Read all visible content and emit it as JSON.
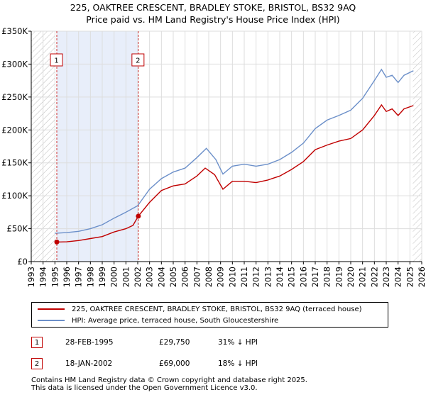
{
  "title": "225, OAKTREE CRESCENT, BRADLEY STOKE, BRISTOL, BS32 9AQ",
  "subtitle": "Price paid vs. HM Land Registry's House Price Index (HPI)",
  "colors": {
    "red": "#c00000",
    "blue": "#6b8fc9",
    "shade": "#e8eefa",
    "grid": "#dddddd"
  },
  "chart_data": {
    "type": "line",
    "title": "225, OAKTREE CRESCENT, BRADLEY STOKE, BRISTOL, BS32 9AQ",
    "xlim": [
      1993,
      2026
    ],
    "ylim": [
      0,
      350000
    ],
    "x_ticks": [
      "1993",
      "1994",
      "1995",
      "1996",
      "1997",
      "1998",
      "1999",
      "2000",
      "2001",
      "2002",
      "2003",
      "2004",
      "2005",
      "2006",
      "2007",
      "2008",
      "2009",
      "2010",
      "2011",
      "2012",
      "2013",
      "2014",
      "2015",
      "2016",
      "2017",
      "2018",
      "2019",
      "2020",
      "2021",
      "2022",
      "2023",
      "2024",
      "2025",
      "2026"
    ],
    "y_ticks": [
      {
        "value": 0,
        "label": "£0"
      },
      {
        "value": 50000,
        "label": "£50K"
      },
      {
        "value": 100000,
        "label": "£100K"
      },
      {
        "value": 150000,
        "label": "£150K"
      },
      {
        "value": 200000,
        "label": "£200K"
      },
      {
        "value": 250000,
        "label": "£250K"
      },
      {
        "value": 300000,
        "label": "£300K"
      },
      {
        "value": 350000,
        "label": "£350K"
      }
    ],
    "shaded_range": [
      1995.16,
      2002.05
    ],
    "hatched_before": 1995.0,
    "hatched_after": 2025.25,
    "series": [
      {
        "name": "225, OAKTREE CRESCENT, BRADLEY STOKE, BRISTOL, BS32 9AQ (terraced house)",
        "color": "#c00000",
        "points": [
          [
            1995.16,
            29750
          ],
          [
            1996,
            30000
          ],
          [
            1997,
            32000
          ],
          [
            1998,
            35000
          ],
          [
            1999,
            38000
          ],
          [
            2000,
            45000
          ],
          [
            2001,
            50000
          ],
          [
            2001.6,
            55000
          ],
          [
            2002.05,
            69000
          ],
          [
            2003,
            90000
          ],
          [
            2004,
            108000
          ],
          [
            2005,
            115000
          ],
          [
            2006,
            118000
          ],
          [
            2007,
            130000
          ],
          [
            2007.7,
            142000
          ],
          [
            2008.5,
            132000
          ],
          [
            2009.2,
            110000
          ],
          [
            2010,
            122000
          ],
          [
            2011,
            122000
          ],
          [
            2012,
            120000
          ],
          [
            2013,
            124000
          ],
          [
            2014,
            130000
          ],
          [
            2015,
            140000
          ],
          [
            2016,
            152000
          ],
          [
            2017,
            170000
          ],
          [
            2018,
            177000
          ],
          [
            2019,
            183000
          ],
          [
            2020,
            187000
          ],
          [
            2021,
            200000
          ],
          [
            2022,
            222000
          ],
          [
            2022.6,
            238000
          ],
          [
            2023,
            228000
          ],
          [
            2023.5,
            232000
          ],
          [
            2024,
            222000
          ],
          [
            2024.5,
            232000
          ],
          [
            2025.3,
            237000
          ]
        ]
      },
      {
        "name": "HPI: Average price, terraced house, South Gloucestershire",
        "color": "#6b8fc9",
        "points": [
          [
            1995,
            43000
          ],
          [
            1996,
            44000
          ],
          [
            1997,
            46000
          ],
          [
            1998,
            50000
          ],
          [
            1999,
            56000
          ],
          [
            2000,
            66000
          ],
          [
            2001,
            75000
          ],
          [
            2002,
            85000
          ],
          [
            2003,
            110000
          ],
          [
            2004,
            126000
          ],
          [
            2005,
            136000
          ],
          [
            2006,
            142000
          ],
          [
            2007,
            158000
          ],
          [
            2007.8,
            172000
          ],
          [
            2008.6,
            155000
          ],
          [
            2009.2,
            133000
          ],
          [
            2010,
            145000
          ],
          [
            2011,
            148000
          ],
          [
            2012,
            145000
          ],
          [
            2013,
            148000
          ],
          [
            2014,
            155000
          ],
          [
            2015,
            166000
          ],
          [
            2016,
            180000
          ],
          [
            2017,
            202000
          ],
          [
            2018,
            215000
          ],
          [
            2019,
            222000
          ],
          [
            2020,
            230000
          ],
          [
            2021,
            248000
          ],
          [
            2022,
            275000
          ],
          [
            2022.6,
            292000
          ],
          [
            2023,
            280000
          ],
          [
            2023.5,
            283000
          ],
          [
            2024,
            272000
          ],
          [
            2024.5,
            283000
          ],
          [
            2025.3,
            290000
          ]
        ]
      }
    ],
    "sales": [
      {
        "label": "1",
        "date": "28-FEB-1995",
        "x": 1995.16,
        "price": 29750,
        "price_label": "£29,750",
        "hpi_diff": "31% ↓ HPI"
      },
      {
        "label": "2",
        "date": "18-JAN-2002",
        "x": 2002.05,
        "price": 69000,
        "price_label": "£69,000",
        "hpi_diff": "18% ↓ HPI"
      }
    ]
  },
  "legend": {
    "red_label": "225, OAKTREE CRESCENT, BRADLEY STOKE, BRISTOL, BS32 9AQ (terraced house)",
    "blue_label": "HPI: Average price, terraced house, South Gloucestershire"
  },
  "footer": {
    "line1": "Contains HM Land Registry data © Crown copyright and database right 2025.",
    "line2": "This data is licensed under the Open Government Licence v3.0."
  }
}
